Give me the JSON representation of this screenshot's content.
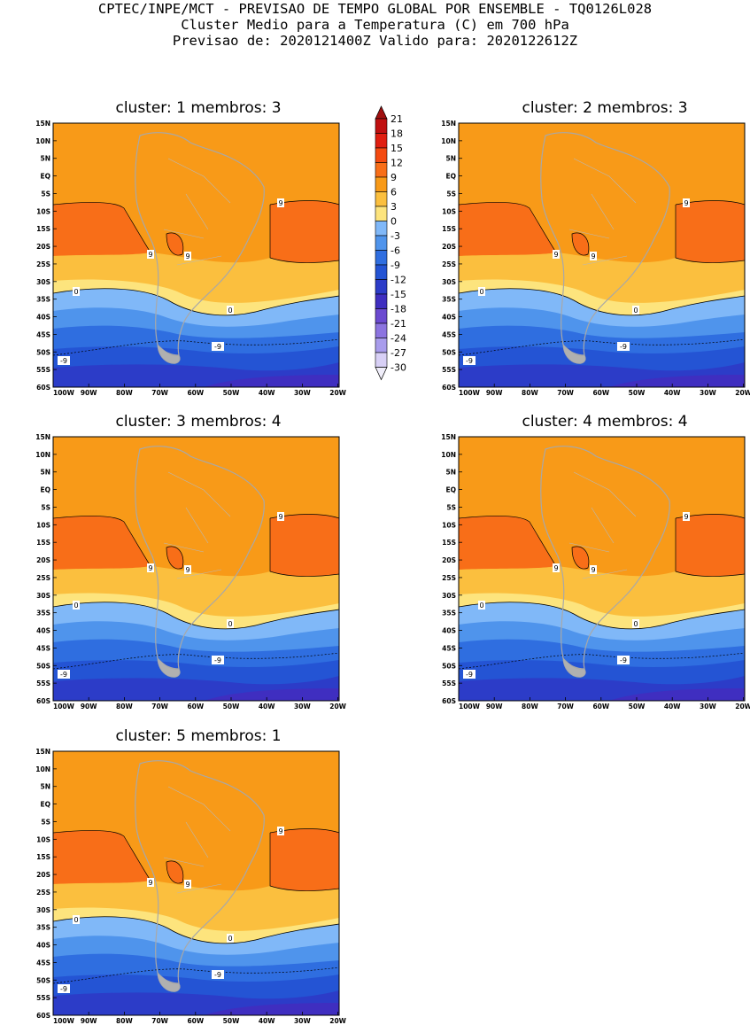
{
  "header": {
    "line1": "CPTEC/INPE/MCT - PREVISAO DE TEMPO GLOBAL POR ENSEMBLE - TQ0126L028",
    "line2": "Cluster Medio para a Temperatura (C) em 700 hPa",
    "line3": "Previsao de: 2020121400Z   Valido para: 2020122612Z"
  },
  "axes": {
    "lat_labels": [
      "15N",
      "10N",
      "5N",
      "EQ",
      "5S",
      "10S",
      "15S",
      "20S",
      "25S",
      "30S",
      "35S",
      "40S",
      "45S",
      "50S",
      "55S",
      "60S"
    ],
    "lon_labels": [
      "100W",
      "90W",
      "80W",
      "70W",
      "60W",
      "50W",
      "40W",
      "30W",
      "20W"
    ]
  },
  "colorbar": {
    "labels": [
      "21",
      "18",
      "15",
      "12",
      "9",
      "6",
      "3",
      "0",
      "-3",
      "-6",
      "-9",
      "-12",
      "-15",
      "-18",
      "-21",
      "-24",
      "-27",
      "-30"
    ],
    "colors": [
      "#c01010",
      "#e01e10",
      "#f44a10",
      "#f86e18",
      "#f89a18",
      "#fbbf3e",
      "#fde47d",
      "#80b8f8",
      "#4f94ec",
      "#2f6ee0",
      "#2454d4",
      "#2c3cc8",
      "#3f2ec0",
      "#6b4ad0",
      "#8c74e0",
      "#a89cec",
      "#d8d0f6"
    ]
  },
  "panels": [
    {
      "title": "cluster: 1   membros: 3"
    },
    {
      "title": "cluster: 2   membros: 3"
    },
    {
      "title": "cluster: 3   membros: 4"
    },
    {
      "title": "cluster: 4   membros: 4"
    },
    {
      "title": "cluster: 5   membros: 1"
    }
  ],
  "contour_labels": {
    "nine": "9",
    "zero": "0",
    "minus_nine": "-9"
  }
}
